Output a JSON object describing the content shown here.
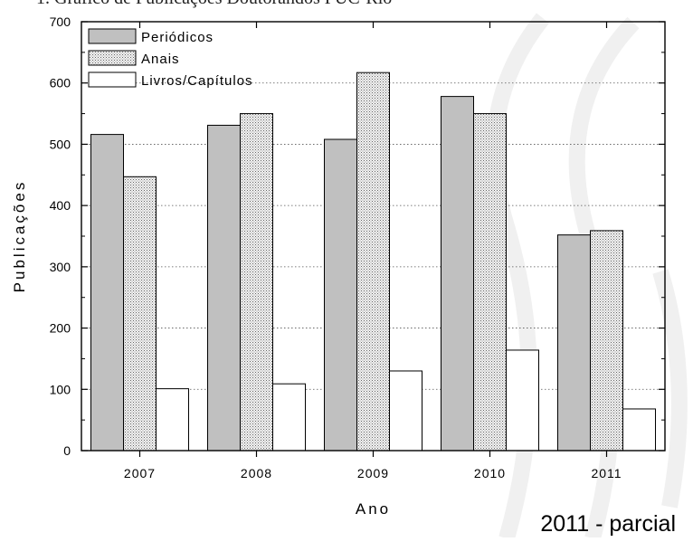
{
  "page": {
    "header_fragment": "1. Gráfico de Publicações Doutorandos PUC-Rio"
  },
  "chart_data": {
    "type": "bar",
    "title": "",
    "xlabel": "Ano",
    "ylabel": "Publicações",
    "categories": [
      "2007",
      "2008",
      "2009",
      "2010",
      "2011"
    ],
    "series": [
      {
        "name": "Periódicos",
        "values": [
          516,
          531,
          508,
          578,
          352
        ],
        "fill": "#c0c0c0",
        "pattern": "solid"
      },
      {
        "name": "Anais",
        "values": [
          447,
          550,
          617,
          550,
          359
        ],
        "fill": "#e8e8e8",
        "pattern": "dots"
      },
      {
        "name": "Livros/Capítulos",
        "values": [
          101,
          109,
          130,
          164,
          68
        ],
        "fill": "#ffffff",
        "pattern": "solid"
      }
    ],
    "ylim": [
      0,
      700
    ],
    "yticks": [
      0,
      100,
      200,
      300,
      400,
      500,
      600,
      700
    ],
    "grid": true,
    "legend_position": "top-left",
    "annotation": "2011 - parcial"
  }
}
